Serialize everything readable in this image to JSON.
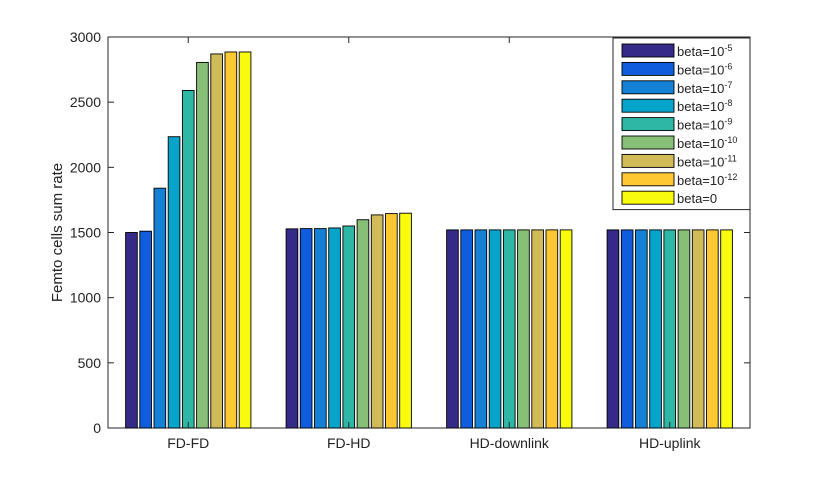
{
  "chart_data": {
    "type": "bar",
    "title": "",
    "xlabel": "",
    "ylabel": "Femto cells sum rate",
    "ylim": [
      0,
      3000
    ],
    "yticks": [
      0,
      500,
      1000,
      1500,
      2000,
      2500,
      3000
    ],
    "grid": false,
    "legend_position": "top-right",
    "categories": [
      "FD-FD",
      "FD-HD",
      "HD-downlink",
      "HD-uplink"
    ],
    "series": [
      {
        "name": "beta=10^-5",
        "label_base": "beta=10",
        "label_exp": "-5",
        "color": "#352a87",
        "values": [
          1500,
          1528,
          1520,
          1520
        ]
      },
      {
        "name": "beta=10^-6",
        "label_base": "beta=10",
        "label_exp": "-6",
        "color": "#0f5cdd",
        "values": [
          1510,
          1530,
          1520,
          1520
        ]
      },
      {
        "name": "beta=10^-7",
        "label_base": "beta=10",
        "label_exp": "-7",
        "color": "#1481d6",
        "values": [
          1840,
          1530,
          1520,
          1520
        ]
      },
      {
        "name": "beta=10^-8",
        "label_base": "beta=10",
        "label_exp": "-8",
        "color": "#06a4ca",
        "values": [
          2235,
          1535,
          1520,
          1520
        ]
      },
      {
        "name": "beta=10^-9",
        "label_base": "beta=10",
        "label_exp": "-9",
        "color": "#2eb7a4",
        "values": [
          2590,
          1550,
          1520,
          1520
        ]
      },
      {
        "name": "beta=10^-10",
        "label_base": "beta=10",
        "label_exp": "-10",
        "color": "#87bf77",
        "values": [
          2805,
          1598,
          1520,
          1520
        ]
      },
      {
        "name": "beta=10^-11",
        "label_base": "beta=10",
        "label_exp": "-11",
        "color": "#d1bb59",
        "values": [
          2870,
          1635,
          1520,
          1520
        ]
      },
      {
        "name": "beta=10^-12",
        "label_base": "beta=10",
        "label_exp": "-12",
        "color": "#fec832",
        "values": [
          2885,
          1645,
          1520,
          1520
        ]
      },
      {
        "name": "beta=0",
        "label_base": "beta=0",
        "label_exp": "",
        "color": "#f9fb0e",
        "values": [
          2885,
          1648,
          1520,
          1520
        ]
      }
    ]
  }
}
